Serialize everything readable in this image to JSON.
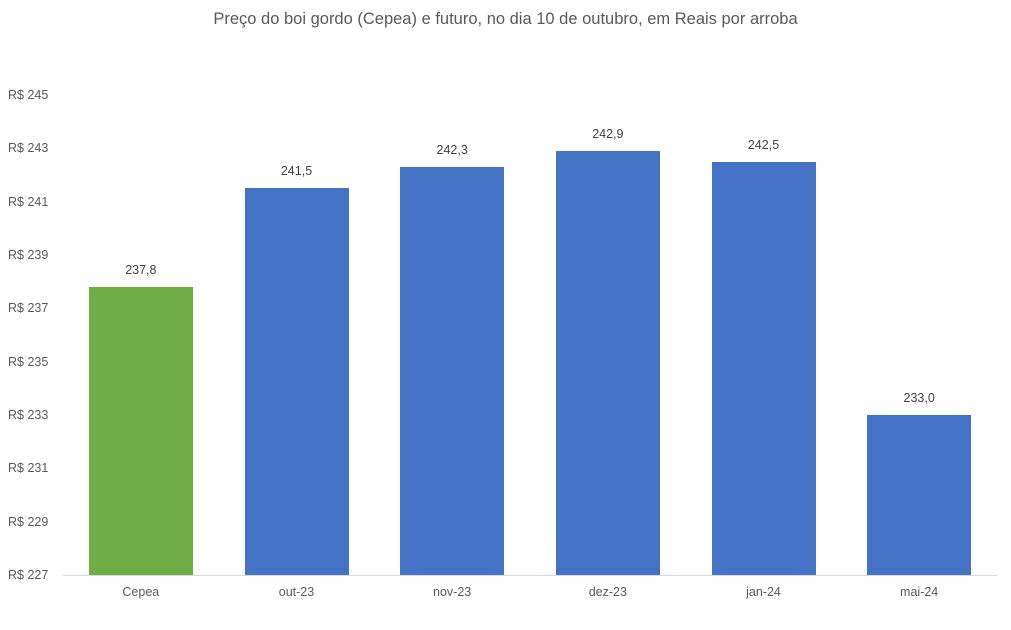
{
  "chart_data": {
    "type": "bar",
    "title": "Preço do boi gordo (Cepea) e futuro, no dia 10 de outubro, em Reais por arroba",
    "xlabel": "",
    "ylabel": "",
    "categories": [
      "Cepea",
      "out-23",
      "nov-23",
      "dez-23",
      "jan-24",
      "mai-24"
    ],
    "values": [
      237.8,
      241.5,
      242.3,
      242.9,
      242.5,
      233.0
    ],
    "value_labels": [
      "237,8",
      "241,5",
      "242,3",
      "242,9",
      "242,5",
      "233,0"
    ],
    "bar_colors": [
      "#70AD47",
      "#4472C4",
      "#4472C4",
      "#4472C4",
      "#4472C4",
      "#4472C4"
    ],
    "ylim": [
      227,
      245
    ],
    "yticks": [
      227,
      229,
      231,
      233,
      235,
      237,
      239,
      241,
      243,
      245
    ],
    "ytick_labels": [
      "R$ 227",
      "R$ 229",
      "R$ 231",
      "R$ 233",
      "R$ 235",
      "R$ 237",
      "R$ 239",
      "R$ 241",
      "R$ 243",
      "R$ 245"
    ],
    "grid": false,
    "legend": null
  }
}
